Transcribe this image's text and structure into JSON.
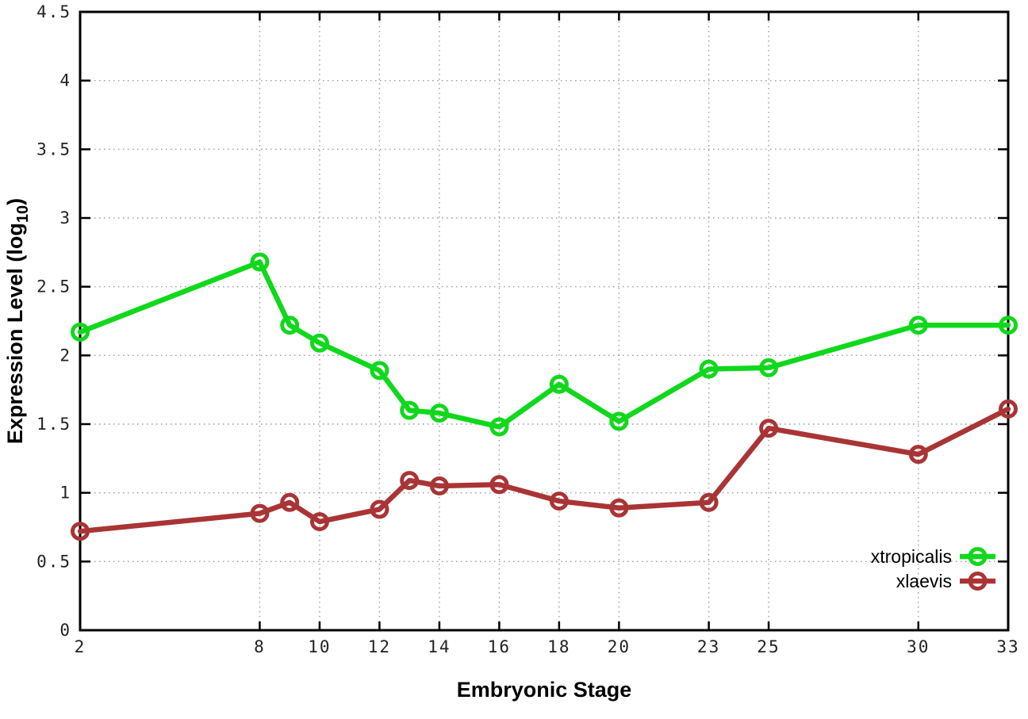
{
  "figure": {
    "background": "#ffffff",
    "border_color": "#000000",
    "grid_color": "#9c9c9c",
    "tick_color": "#000000"
  },
  "chart_data": {
    "type": "line",
    "title": "",
    "xlabel": "Embryonic Stage",
    "ylabel": "Expression Level (log10)",
    "ylabel_parts": {
      "pre": "Expression Level (log",
      "sub": "10",
      "post": ")"
    },
    "x": [
      2,
      8,
      9,
      10,
      12,
      13,
      14,
      16,
      18,
      20,
      23,
      25,
      30,
      33
    ],
    "xlim": [
      2,
      33
    ],
    "ylim": [
      0,
      4.5
    ],
    "xticks": [
      2,
      8,
      10,
      12,
      14,
      16,
      18,
      20,
      23,
      25,
      30,
      33
    ],
    "xtick_labels": [
      "2",
      "8",
      "10",
      "12",
      "14",
      "16",
      "18",
      "20",
      "23",
      "25",
      "30",
      "33"
    ],
    "yticks": [
      0,
      0.5,
      1,
      1.5,
      2,
      2.5,
      3,
      3.5,
      4,
      4.5
    ],
    "ytick_labels": [
      "0",
      "0.5",
      "1",
      "1.5",
      "2",
      "2.5",
      "3",
      "3.5",
      "4",
      "4.5"
    ],
    "grid": true,
    "legend_position": "inside-bottom-right",
    "series": [
      {
        "name": "xtropicalis",
        "color": "#10d81c",
        "marker": "open-circle",
        "values": [
          2.17,
          2.68,
          2.22,
          2.09,
          1.89,
          1.6,
          1.58,
          1.48,
          1.79,
          1.52,
          1.9,
          1.91,
          2.22,
          2.22
        ]
      },
      {
        "name": "xlaevis",
        "color": "#a93436",
        "marker": "open-circle",
        "values": [
          0.72,
          0.85,
          0.93,
          0.79,
          0.88,
          1.09,
          1.05,
          1.06,
          0.94,
          0.89,
          0.93,
          1.47,
          1.28,
          1.61
        ]
      }
    ]
  }
}
